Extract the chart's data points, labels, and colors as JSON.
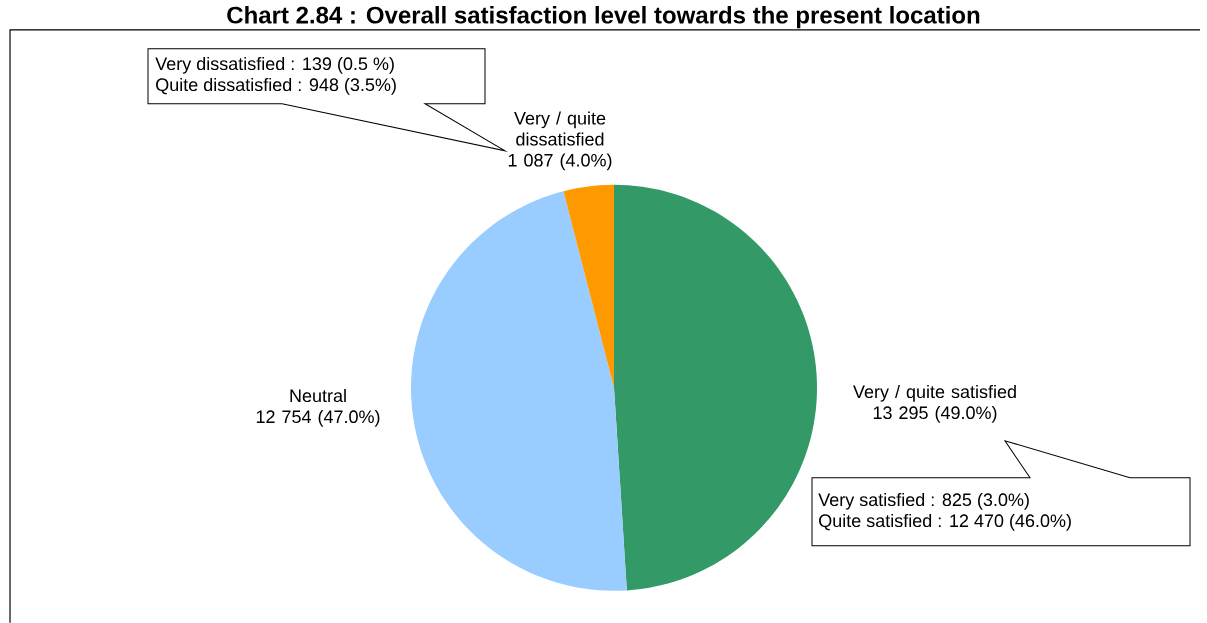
{
  "chart_data": {
    "type": "pie",
    "title": "Chart 2.84 : Overall satisfaction level towards the present location",
    "categories": [
      "Very / quite satisfied",
      "Neutral",
      "Very / quite dissatisfied"
    ],
    "values": [
      13295,
      12754,
      1087
    ],
    "value_labels": [
      "13 295 (49.0%)",
      "12 754 (47.0%)",
      "1 087 (4.0%)"
    ],
    "colors": [
      "#339966",
      "#99ccff",
      "#ff9900"
    ],
    "annotations": [
      "Very dissatisfied : 139 (0.5 %)",
      "Quite dissatisfied : 948 (3.5%)",
      "Very satisfied : 825 (3.0%)",
      "Quite satisfied : 12 470 (46.0%)"
    ]
  }
}
